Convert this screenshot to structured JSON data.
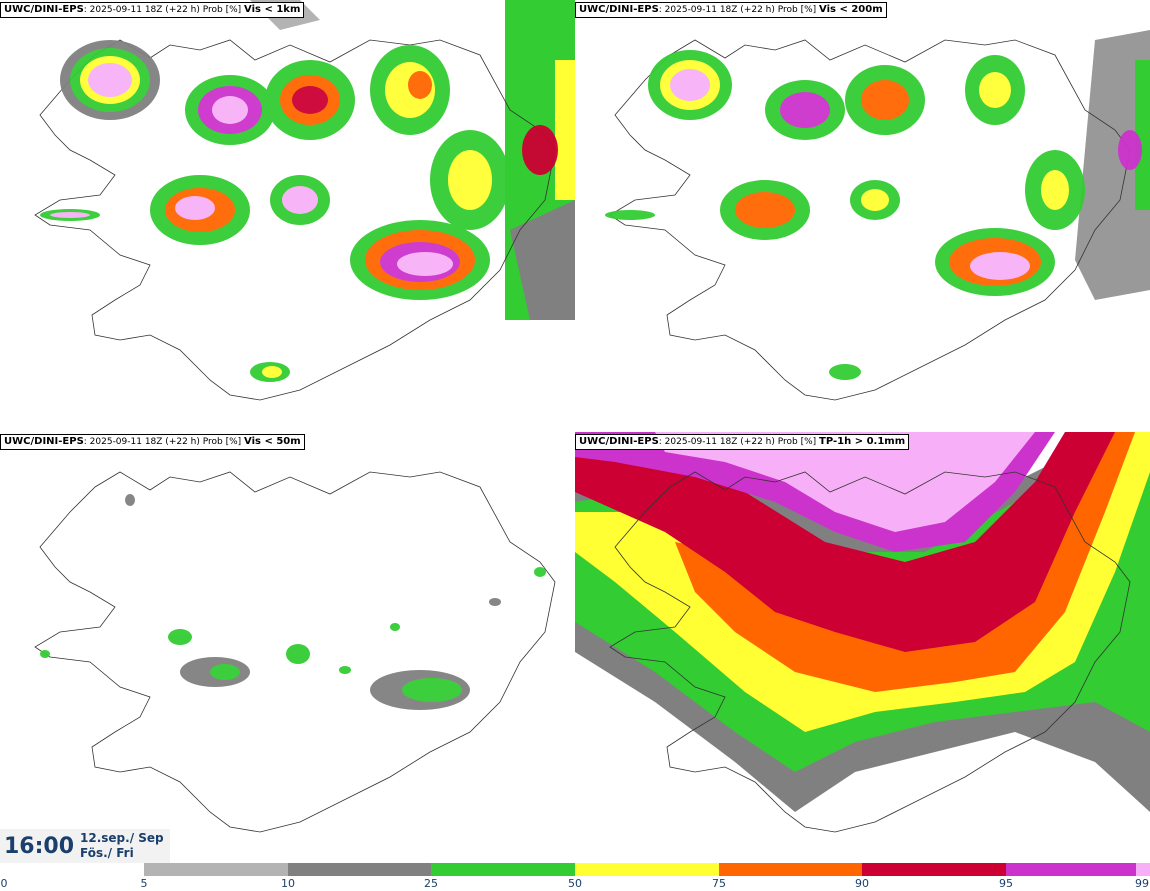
{
  "panels": [
    {
      "model": "UWC/DINI-EPS",
      "run": ": 2025-09-11 18Z (+22 h) Prob [%]",
      "variable": "Vis < 1km"
    },
    {
      "model": "UWC/DINI-EPS",
      "run": ": 2025-09-11 18Z (+22 h) Prob [%]",
      "variable": "Vis < 200m"
    },
    {
      "model": "UWC/DINI-EPS",
      "run": ": 2025-09-11 18Z (+22 h) Prob [%]",
      "variable": "Vis < 50m"
    },
    {
      "model": "UWC/DINI-EPS",
      "run": ": 2025-09-11 18Z (+22 h) Prob [%]",
      "variable": "TP-1h > 0.1mm"
    }
  ],
  "valid_time": {
    "time": "16:00",
    "date_line1": "12.sep./ Sep",
    "date_line2": "Fös./ Fri"
  },
  "colorbar": {
    "ticks": [
      "0",
      "5",
      "10",
      "25",
      "50",
      "75",
      "90",
      "95",
      "99"
    ],
    "colors": [
      "#b3b3b3",
      "#808080",
      "#33cc33",
      "#ffff33",
      "#ff6600",
      "#cc0033",
      "#cc33cc",
      "#f7b0f7"
    ]
  }
}
